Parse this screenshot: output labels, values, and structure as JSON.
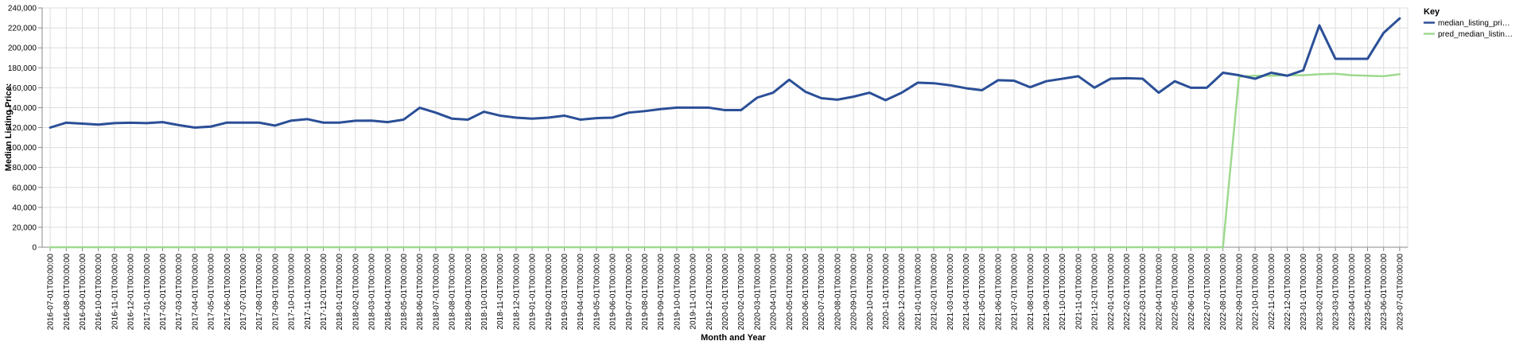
{
  "chart_data": {
    "type": "line",
    "xlabel": "Month and Year",
    "ylabel": "Median Listing Price:",
    "ylim": [
      0,
      240000
    ],
    "yticks": [
      "0",
      "20,000",
      "40,000",
      "60,000",
      "80,000",
      "100,000",
      "120,000",
      "140,000",
      "160,000",
      "180,000",
      "200,000",
      "220,000",
      "240,000"
    ],
    "grid": true,
    "legend": {
      "title": "Key",
      "placement": "top-right",
      "entries": [
        "median_listing_pri…",
        "pred_median_listin…"
      ]
    },
    "colors": {
      "median_listing_price": "#2b4f97",
      "pred_median_listing_price": "#9fd98f"
    },
    "x": [
      "2016-07-01T00:00:00",
      "2016-08-01T00:00:00",
      "2016-09-01T00:00:00",
      "2016-10-01T00:00:00",
      "2016-11-01T00:00:00",
      "2016-12-01T00:00:00",
      "2017-01-01T00:00:00",
      "2017-02-01T00:00:00",
      "2017-03-01T00:00:00",
      "2017-04-01T00:00:00",
      "2017-05-01T00:00:00",
      "2017-06-01T00:00:00",
      "2017-07-01T00:00:00",
      "2017-08-01T00:00:00",
      "2017-09-01T00:00:00",
      "2017-10-01T00:00:00",
      "2017-11-01T00:00:00",
      "2017-12-01T00:00:00",
      "2018-01-01T00:00:00",
      "2018-02-01T00:00:00",
      "2018-03-01T00:00:00",
      "2018-04-01T00:00:00",
      "2018-05-01T00:00:00",
      "2018-06-01T00:00:00",
      "2018-07-01T00:00:00",
      "2018-08-01T00:00:00",
      "2018-09-01T00:00:00",
      "2018-10-01T00:00:00",
      "2018-11-01T00:00:00",
      "2018-12-01T00:00:00",
      "2019-01-01T00:00:00",
      "2019-02-01T00:00:00",
      "2019-03-01T00:00:00",
      "2019-04-01T00:00:00",
      "2019-05-01T00:00:00",
      "2019-06-01T00:00:00",
      "2019-07-01T00:00:00",
      "2019-08-01T00:00:00",
      "2019-09-01T00:00:00",
      "2019-10-01T00:00:00",
      "2019-11-01T00:00:00",
      "2019-12-01T00:00:00",
      "2020-01-01T00:00:00",
      "2020-02-01T00:00:00",
      "2020-03-01T00:00:00",
      "2020-04-01T00:00:00",
      "2020-05-01T00:00:00",
      "2020-06-01T00:00:00",
      "2020-07-01T00:00:00",
      "2020-08-01T00:00:00",
      "2020-09-01T00:00:00",
      "2020-10-01T00:00:00",
      "2020-11-01T00:00:00",
      "2020-12-01T00:00:00",
      "2021-01-01T00:00:00",
      "2021-02-01T00:00:00",
      "2021-03-01T00:00:00",
      "2021-04-01T00:00:00",
      "2021-05-01T00:00:00",
      "2021-06-01T00:00:00",
      "2021-07-01T00:00:00",
      "2021-08-01T00:00:00",
      "2021-09-01T00:00:00",
      "2021-10-01T00:00:00",
      "2021-11-01T00:00:00",
      "2021-12-01T00:00:00",
      "2022-01-01T00:00:00",
      "2022-02-01T00:00:00",
      "2022-03-01T00:00:00",
      "2022-04-01T00:00:00",
      "2022-05-01T00:00:00",
      "2022-06-01T00:00:00",
      "2022-07-01T00:00:00",
      "2022-08-01T00:00:00",
      "2022-09-01T00:00:00",
      "2022-10-01T00:00:00",
      "2022-11-01T00:00:00",
      "2022-12-01T00:00:00",
      "2023-01-01T00:00:00",
      "2023-02-01T00:00:00",
      "2023-03-01T00:00:00",
      "2023-04-01T00:00:00",
      "2023-05-01T00:00:00",
      "2023-06-01T00:00:00",
      "2023-07-01T00:00:00"
    ],
    "series": [
      {
        "name": "median_listing_pri…",
        "values": [
          120000,
          124900,
          124000,
          123000,
          124500,
          124900,
          124500,
          125500,
          122500,
          120000,
          121000,
          125000,
          125000,
          125000,
          122000,
          127000,
          128500,
          125000,
          125000,
          126900,
          127000,
          125500,
          128000,
          139900,
          135000,
          129000,
          128000,
          135900,
          132000,
          130000,
          129000,
          130000,
          132000,
          128000,
          129500,
          130000,
          135000,
          136500,
          138500,
          140000,
          140000,
          140000,
          137500,
          137500,
          150000,
          155000,
          168000,
          156000,
          149500,
          148000,
          151000,
          155000,
          147500,
          155000,
          165000,
          164500,
          162500,
          159500,
          157500,
          167500,
          167000,
          160500,
          166500,
          169000,
          171500,
          160000,
          169000,
          169500,
          169000,
          155000,
          166500,
          160000,
          160000,
          175000,
          172500,
          169000,
          175000,
          172000,
          177500,
          222500,
          189000,
          189000,
          189000,
          215000,
          229500
        ]
      },
      {
        "name": "pred_median_listin…",
        "values": [
          0,
          0,
          0,
          0,
          0,
          0,
          0,
          0,
          0,
          0,
          0,
          0,
          0,
          0,
          0,
          0,
          0,
          0,
          0,
          0,
          0,
          0,
          0,
          0,
          0,
          0,
          0,
          0,
          0,
          0,
          0,
          0,
          0,
          0,
          0,
          0,
          0,
          0,
          0,
          0,
          0,
          0,
          0,
          0,
          0,
          0,
          0,
          0,
          0,
          0,
          0,
          0,
          0,
          0,
          0,
          0,
          0,
          0,
          0,
          0,
          0,
          0,
          0,
          0,
          0,
          0,
          0,
          0,
          0,
          0,
          0,
          0,
          0,
          0,
          171000,
          172000,
          172000,
          172500,
          172500,
          173500,
          174000,
          172500,
          172000,
          171500,
          173500
        ]
      }
    ]
  }
}
